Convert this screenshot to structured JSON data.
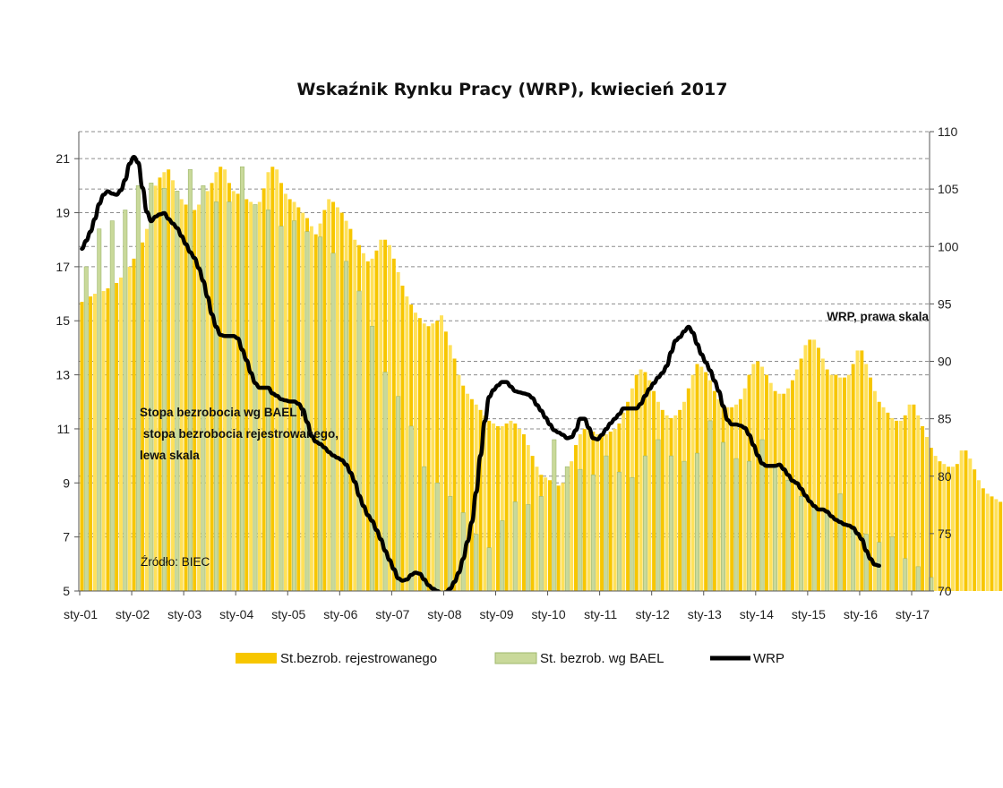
{
  "chart_data": {
    "type": "bar",
    "title": "Wskaźnik Rynku Pracy (WRP), kwiecień 2017",
    "xlabel": "",
    "ylabel": "",
    "x_tick_labels": [
      "sty-01",
      "sty-02",
      "sty-03",
      "sty-04",
      "sty-05",
      "sty-06",
      "sty-07",
      "sty-08",
      "sty-09",
      "sty-10",
      "sty-11",
      "sty-12",
      "sty-13",
      "sty-14",
      "sty-15",
      "sty-16",
      "sty-17"
    ],
    "x_range": [
      "2001-01",
      "2017-04"
    ],
    "left_axis": {
      "min": 5,
      "max": 22,
      "ticks": [
        5,
        7,
        9,
        11,
        13,
        15,
        17,
        19,
        21
      ]
    },
    "right_axis": {
      "min": 70,
      "max": 110,
      "ticks": [
        70,
        75,
        80,
        85,
        90,
        95,
        100,
        105,
        110
      ]
    },
    "grid": true,
    "legend_position": "bottom",
    "colors": {
      "registered": "#f7c600",
      "registered_stripe": "#ffe15a",
      "bael": "#9fb86c",
      "bael_fill": "#c9d99a",
      "wrp": "#000000",
      "grid": "#8c8c8c"
    },
    "series": [
      {
        "name": "St.bezrob. rejestrowanego",
        "kind": "bar",
        "axis": "left",
        "frequency": "monthly",
        "start": "2001-01",
        "values": [
          15.7,
          15.8,
          15.9,
          16.0,
          16.0,
          16.1,
          16.2,
          16.3,
          16.4,
          16.6,
          16.8,
          17.0,
          17.3,
          17.6,
          17.9,
          18.4,
          19.2,
          20.0,
          20.3,
          20.5,
          20.6,
          20.2,
          19.8,
          19.5,
          19.3,
          19.0,
          19.1,
          19.3,
          19.5,
          19.8,
          20.1,
          20.5,
          20.7,
          20.6,
          20.1,
          19.8,
          19.7,
          19.6,
          19.5,
          19.4,
          19.2,
          19.4,
          19.9,
          20.5,
          20.7,
          20.6,
          20.1,
          19.7,
          19.5,
          19.4,
          19.2,
          19.0,
          18.8,
          18.5,
          18.2,
          18.6,
          19.1,
          19.5,
          19.4,
          19.2,
          19.0,
          18.7,
          18.4,
          18.0,
          17.8,
          17.5,
          17.2,
          17.3,
          17.6,
          18.0,
          18.0,
          17.8,
          17.3,
          16.8,
          16.3,
          15.9,
          15.6,
          15.3,
          15.1,
          14.9,
          14.8,
          14.9,
          15.0,
          15.2,
          14.6,
          14.1,
          13.6,
          13.0,
          12.6,
          12.3,
          12.1,
          11.9,
          11.7,
          11.5,
          11.3,
          11.2,
          11.1,
          11.1,
          11.2,
          11.3,
          11.2,
          11.0,
          10.8,
          10.4,
          10.0,
          9.6,
          9.3,
          9.2,
          9.1,
          9.0,
          8.9,
          9.0,
          9.4,
          9.8,
          10.4,
          10.8,
          11.0,
          11.0,
          10.9,
          10.8,
          10.8,
          10.8,
          10.9,
          11.0,
          11.2,
          11.6,
          12.0,
          12.5,
          13.0,
          13.2,
          13.1,
          12.8,
          12.4,
          12.0,
          11.7,
          11.5,
          11.4,
          11.5,
          11.7,
          12.0,
          12.5,
          13.0,
          13.4,
          13.3,
          13.1,
          12.8,
          12.4,
          12.1,
          11.9,
          11.8,
          11.8,
          11.9,
          12.1,
          12.5,
          13.0,
          13.4,
          13.5,
          13.3,
          13.0,
          12.7,
          12.4,
          12.3,
          12.3,
          12.5,
          12.8,
          13.2,
          13.6,
          14.1,
          14.3,
          14.3,
          14.0,
          13.6,
          13.2,
          13.0,
          13.0,
          12.9,
          12.9,
          13.0,
          13.4,
          13.9,
          13.9,
          13.4,
          12.9,
          12.4,
          12.0,
          11.8,
          11.6,
          11.4,
          11.3,
          11.3,
          11.5,
          11.9,
          11.9,
          11.5,
          11.1,
          10.7,
          10.3,
          10.0,
          9.8,
          9.7,
          9.6,
          9.6,
          9.7,
          10.2,
          10.2,
          9.9,
          9.5,
          9.1,
          8.8,
          8.6,
          8.5,
          8.4,
          8.3,
          8.3,
          8.3,
          8.6,
          8.5,
          8.1
        ]
      },
      {
        "name": "St. bezrob. wg BAEL",
        "kind": "bar",
        "axis": "left",
        "frequency": "quarterly",
        "start": "2001-01",
        "values": [
          17.0,
          18.4,
          18.7,
          19.1,
          20.0,
          20.1,
          19.9,
          19.8,
          20.6,
          20.0,
          19.4,
          19.4,
          20.7,
          19.3,
          19.1,
          18.5,
          18.7,
          18.3,
          18.1,
          17.5,
          17.2,
          16.1,
          14.8,
          13.1,
          12.2,
          11.1,
          9.6,
          9.0,
          8.5,
          7.9,
          7.1,
          6.6,
          7.6,
          8.3,
          8.2,
          8.5,
          10.6,
          9.6,
          9.5,
          9.3,
          10.0,
          9.4,
          9.2,
          10.0,
          10.6,
          10.0,
          9.8,
          10.1,
          11.3,
          10.5,
          9.9,
          9.8,
          10.6,
          9.7,
          9.1,
          8.5,
          8.2,
          8.0,
          8.6,
          7.4,
          7.1,
          6.8,
          7.0,
          6.2,
          5.9,
          5.5
        ]
      },
      {
        "name": "WRP",
        "kind": "line",
        "axis": "right",
        "frequency": "monthly",
        "start": "2001-01",
        "values": [
          99.8,
          100.5,
          101.3,
          102.4,
          103.7,
          104.5,
          104.8,
          104.6,
          104.5,
          104.9,
          105.8,
          107.2,
          107.8,
          107.3,
          105.1,
          103.0,
          102.2,
          102.6,
          102.8,
          102.9,
          102.4,
          102.0,
          101.6,
          100.9,
          100.2,
          99.5,
          99.0,
          98.1,
          97.0,
          95.6,
          94.1,
          93.0,
          92.3,
          92.2,
          92.2,
          92.2,
          92.0,
          91.0,
          90.1,
          89.0,
          88.1,
          87.7,
          87.7,
          87.7,
          87.2,
          87.0,
          86.7,
          86.6,
          86.5,
          86.5,
          86.3,
          85.8,
          84.7,
          83.5,
          83.0,
          82.8,
          82.5,
          82.1,
          81.8,
          81.6,
          81.4,
          81.0,
          80.3,
          79.5,
          78.3,
          77.4,
          76.6,
          76.1,
          75.3,
          74.5,
          73.5,
          72.7,
          71.9,
          71.1,
          70.9,
          71.0,
          71.4,
          71.6,
          71.5,
          71.0,
          70.5,
          70.2,
          70.0,
          69.8,
          69.9,
          70.2,
          70.8,
          71.6,
          72.8,
          74.3,
          76.0,
          78.6,
          81.8,
          84.8,
          86.9,
          87.5,
          87.9,
          88.2,
          88.2,
          87.8,
          87.4,
          87.3,
          87.2,
          87.1,
          86.8,
          86.2,
          85.7,
          85.1,
          84.5,
          84.0,
          83.8,
          83.6,
          83.3,
          83.4,
          84.0,
          85.0,
          85.0,
          84.2,
          83.3,
          83.2,
          83.6,
          84.1,
          84.6,
          85.0,
          85.4,
          85.9,
          85.9,
          85.9,
          85.9,
          86.3,
          87.0,
          87.6,
          88.1,
          88.6,
          89.0,
          89.6,
          90.8,
          91.8,
          92.1,
          92.6,
          93.0,
          92.5,
          91.5,
          90.6,
          89.9,
          89.2,
          88.3,
          87.4,
          86.1,
          84.9,
          84.5,
          84.5,
          84.4,
          84.2,
          83.6,
          82.7,
          81.8,
          81.1,
          80.9,
          80.9,
          80.9,
          81.0,
          80.6,
          80.1,
          79.6,
          79.4,
          78.9,
          78.3,
          77.8,
          77.4,
          77.1,
          77.1,
          76.9,
          76.5,
          76.2,
          76.0,
          75.8,
          75.7,
          75.5,
          75.0,
          74.5,
          73.5,
          72.8,
          72.3,
          72.2
        ]
      }
    ],
    "annotations": {
      "left_scale": [
        "Stopa bezrobocia wg BAEL i",
        " stopa bezrobocia rejestrowanego,",
        "lewa skala"
      ],
      "right_scale": "WRP, prawa skala",
      "source": "Źródło: BIEC"
    }
  }
}
